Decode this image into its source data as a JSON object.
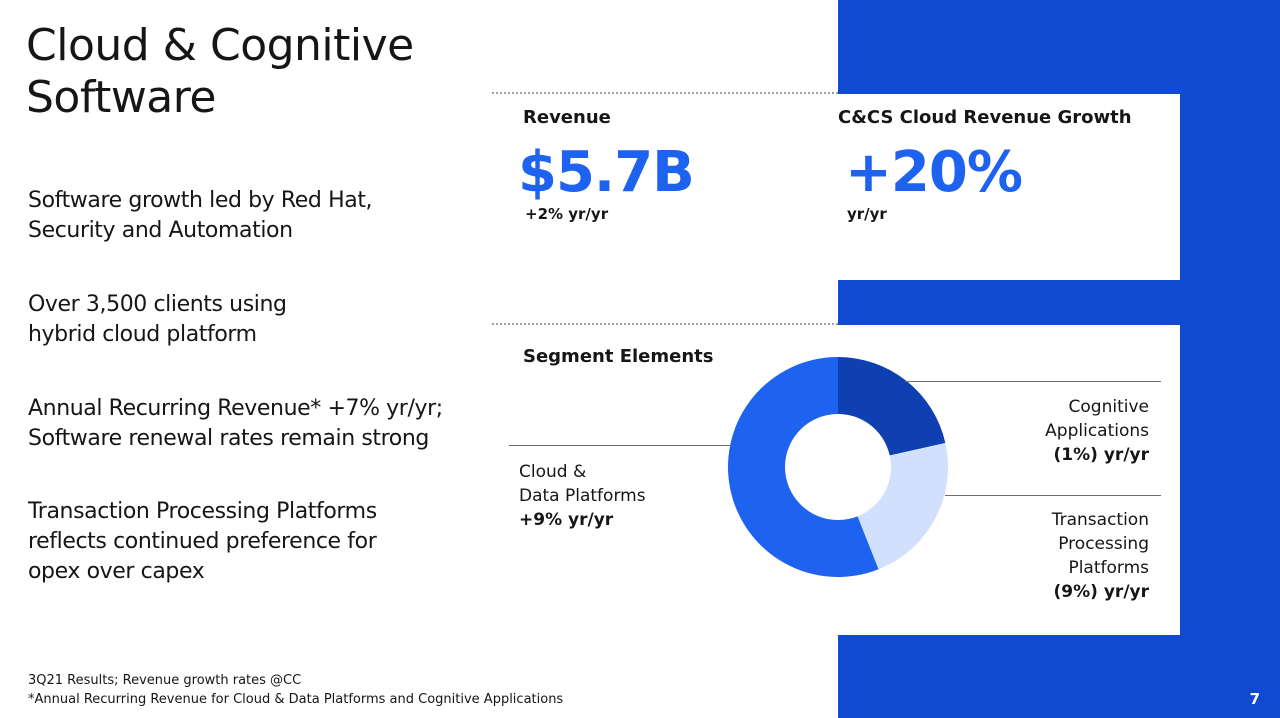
{
  "title": {
    "line1": "Cloud & Cognitive",
    "line2": "Software"
  },
  "bullets": [
    {
      "lines": [
        "Software growth led by Red Hat,",
        "Security and Automation"
      ]
    },
    {
      "lines": [
        "Over 3,500 clients using",
        "hybrid cloud platform"
      ]
    },
    {
      "lines": [
        "Annual Recurring Revenue* +7% yr/yr;",
        "Software renewal rates remain strong"
      ]
    },
    {
      "lines": [
        "Transaction Processing Platforms",
        "reflects continued preference for",
        "opex over capex"
      ]
    }
  ],
  "revenue": {
    "label": "Revenue",
    "value": "$5.7B",
    "change": "+2% yr/yr"
  },
  "cloud_growth": {
    "label": "C&CS Cloud Revenue Growth",
    "value": "+20%",
    "change": "yr/yr"
  },
  "segments": {
    "label": "Segment Elements",
    "items": [
      {
        "lines": [
          "Cognitive",
          "Applications"
        ],
        "growth": "(1%) yr/yr",
        "color": "#0f3fb0",
        "share": 0.215
      },
      {
        "lines": [
          "Transaction",
          "Processing",
          "Platforms"
        ],
        "growth": "(9%) yr/yr",
        "color": "#d0e0fd",
        "share": 0.225
      },
      {
        "lines": [
          "Cloud &",
          "Data Platforms"
        ],
        "growth": "+9% yr/yr",
        "color": "#1e62f0",
        "share": 0.56
      }
    ]
  },
  "footnotes": {
    "line1": "3Q21 Results; Revenue growth rates @CC",
    "line2": "*Annual Recurring Revenue for Cloud & Data Platforms and Cognitive Applications"
  },
  "page_number": "7",
  "colors": {
    "panel_blue": "#0f4ad1",
    "accent_blue": "#1e62f0"
  }
}
